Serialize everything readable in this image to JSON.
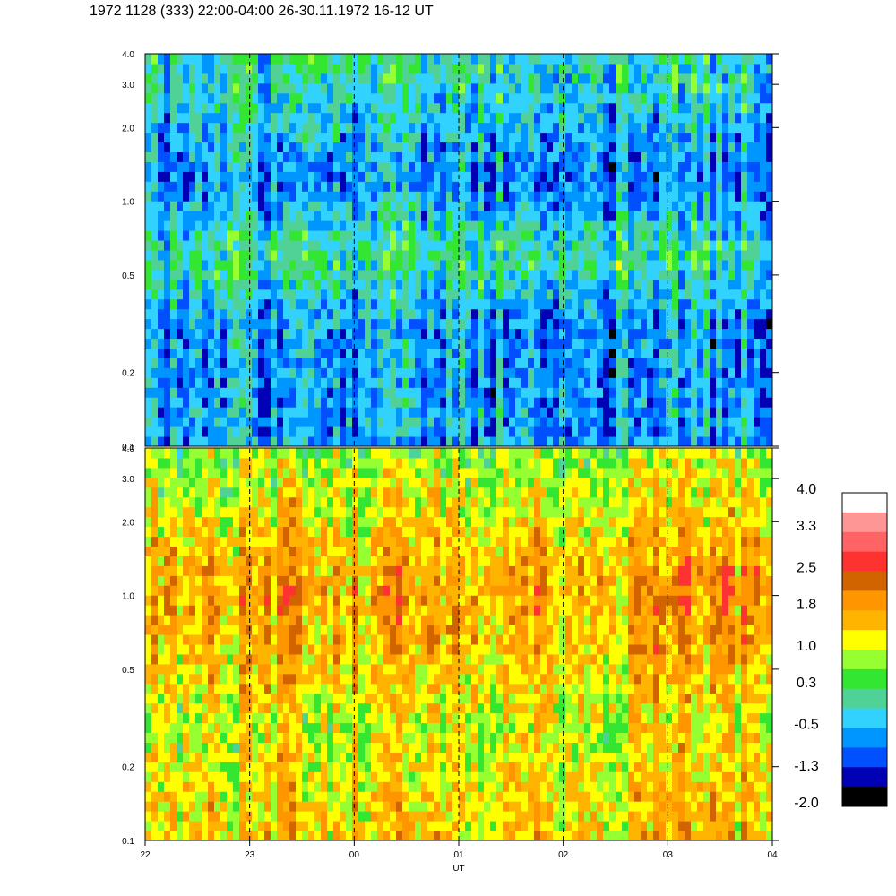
{
  "title": "1972 1128 (333) 22:00-04:00 26-30.11.1972  16-12 UT",
  "chart_data": {
    "type": "heatmap",
    "title": "1972 1128 (333) 22:00-04:00 26-30.11.1972  16-12 UT",
    "xlabel": "UT",
    "x_ticks": [
      "22",
      "23",
      "00",
      "01",
      "02",
      "03",
      "04"
    ],
    "x_range_hours": [
      22,
      28
    ],
    "dashed_time_markers": [
      "23",
      "00",
      "01",
      "02",
      "03"
    ],
    "y_scale": "log",
    "ylim": [
      0.1,
      4.0
    ],
    "y_ticks": [
      "0.1",
      "0.2",
      "0.5",
      "1.0",
      "2.0",
      "3.0",
      "4.0"
    ],
    "y_tick_values": [
      0.1,
      0.2,
      0.5,
      1.0,
      2.0,
      3.0,
      4.0
    ],
    "panels": [
      {
        "name": "upper",
        "dominant_colors": [
          "#32D2FF",
          "#0096FF",
          "#50D296",
          "#32E632"
        ],
        "description_levels": "mostly -1.3 to 0.3",
        "profile": [
          {
            "y": 0.1,
            "level": -0.6
          },
          {
            "y": 0.3,
            "level": -0.7
          },
          {
            "y": 0.6,
            "level": 0.1
          },
          {
            "y": 1.2,
            "level": -0.8
          },
          {
            "y": 2.0,
            "level": -0.4
          },
          {
            "y": 4.0,
            "level": 0.0
          }
        ]
      },
      {
        "name": "lower",
        "dominant_colors": [
          "#FFFF00",
          "#FFB400",
          "#FF9600",
          "#96FF32"
        ],
        "description_levels": "mostly 0.3 to 2.2",
        "profile": [
          {
            "y": 0.1,
            "level": 1.5
          },
          {
            "y": 0.3,
            "level": 1.1
          },
          {
            "y": 0.6,
            "level": 1.6
          },
          {
            "y": 1.2,
            "level": 1.8
          },
          {
            "y": 2.0,
            "level": 1.3
          },
          {
            "y": 4.0,
            "level": 0.8
          }
        ]
      }
    ],
    "colorbar": {
      "labels": [
        "4.0",
        "3.3",
        "2.5",
        "1.8",
        "1.0",
        "0.3",
        "-0.5",
        "-1.3",
        "-2.0"
      ],
      "label_values": [
        4.0,
        3.3,
        2.5,
        1.8,
        1.0,
        0.3,
        -0.5,
        -1.3,
        -2.0
      ],
      "vmin": -2.0,
      "vmax": 4.0,
      "colors_top_to_bottom": [
        "#FFFFFF",
        "#FF9696",
        "#FF6464",
        "#FF3232",
        "#D26400",
        "#FF9600",
        "#FFB400",
        "#FFFF00",
        "#96FF32",
        "#32E632",
        "#50D296",
        "#32D2FF",
        "#0096FF",
        "#0050FF",
        "#0000B4",
        "#000000"
      ]
    }
  }
}
